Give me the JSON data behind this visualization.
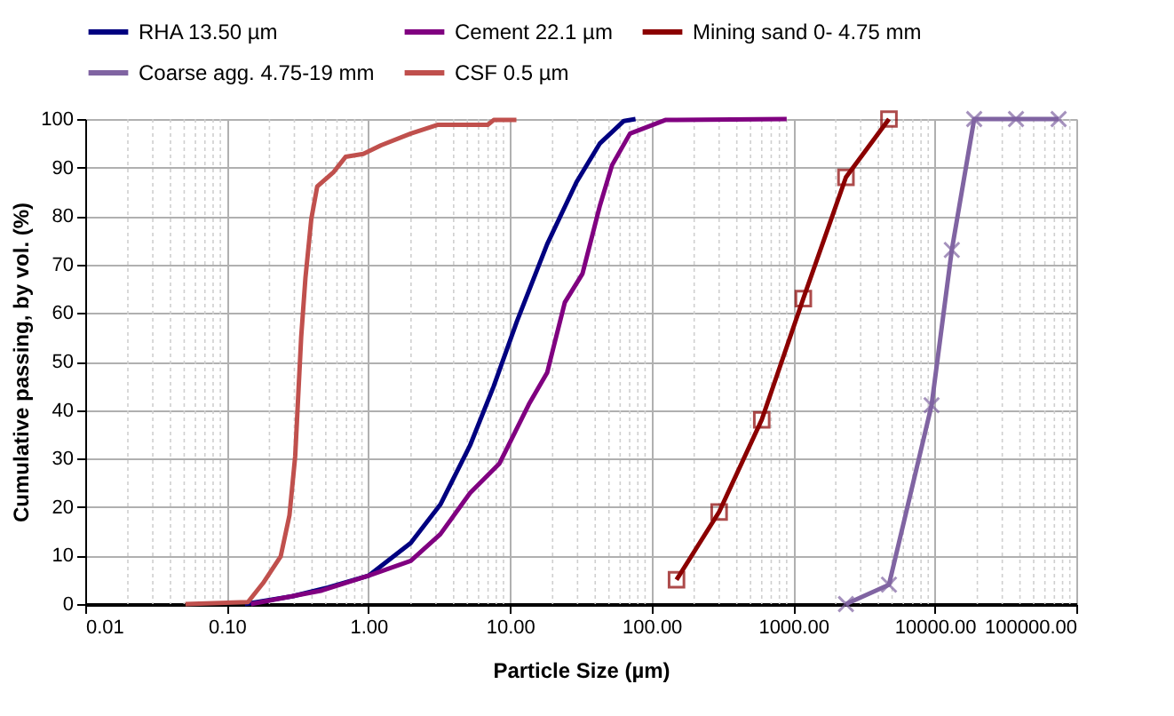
{
  "chart_data": {
    "type": "line",
    "xlabel": "Particle Size (µm)",
    "ylabel": "Cumulative passing, by vol. (%)",
    "log": "x",
    "grid": true,
    "legend": "top",
    "xlim": [
      0.01,
      100000
    ],
    "ylim": [
      0,
      100
    ],
    "xticks": [
      {
        "value": 0.01,
        "label": "0.01"
      },
      {
        "value": 0.1,
        "label": "0.10"
      },
      {
        "value": 1,
        "label": "1.00"
      },
      {
        "value": 10,
        "label": "10.00"
      },
      {
        "value": 100,
        "label": "100.00"
      },
      {
        "value": 1000,
        "label": "1000.00"
      },
      {
        "value": 10000,
        "label": "10000.00"
      },
      {
        "value": 100000,
        "label": "100000.00"
      }
    ],
    "yticks": [
      0,
      10,
      20,
      30,
      40,
      50,
      60,
      70,
      80,
      90,
      100
    ],
    "series": [
      {
        "name": "RHA 13.50 µm",
        "color": "#000080",
        "marker": "none",
        "x": [
          0.134,
          0.29,
          0.517,
          1.01,
          1.99,
          3.22,
          5.22,
          7.67,
          11.2,
          18.3,
          29.5,
          43.2,
          63.7,
          77
        ],
        "values": [
          0,
          1.6,
          3.4,
          5.9,
          12.6,
          20.5,
          32.7,
          44.9,
          58.3,
          74.2,
          87,
          95,
          99.6,
          100
        ]
      },
      {
        "name": "Cement 22.1 µm",
        "color": "#800080",
        "marker": "none",
        "x": [
          0.148,
          0.47,
          1.01,
          1.99,
          3.22,
          5.22,
          8.43,
          13.6,
          18.3,
          20,
          24.4,
          32.5,
          43.2,
          52.6,
          70.4,
          125,
          900
        ],
        "values": [
          0,
          2.8,
          5.9,
          8.9,
          14.4,
          22.9,
          29,
          41.2,
          47.7,
          52.2,
          62.2,
          68.1,
          82.2,
          90.5,
          97,
          99.8,
          100
        ]
      },
      {
        "name": "Mining sand 0- 4.75 mm",
        "color": "#8b0000",
        "marker": "square",
        "x": [
          150,
          300,
          600,
          1180,
          2360,
          4750
        ],
        "values": [
          5,
          19,
          38,
          63,
          88,
          100
        ]
      },
      {
        "name": "Coarse agg. 4.75-19 mm",
        "color": "#8064a2",
        "marker": "cross",
        "x": [
          2360,
          4750,
          9500,
          13200,
          19000,
          37500,
          75000
        ],
        "values": [
          0,
          4,
          41,
          73,
          100,
          100,
          100
        ]
      },
      {
        "name": "CSF  0.5 µm",
        "color": "#c0504d",
        "marker": "none",
        "x": [
          0.051,
          0.141,
          0.18,
          0.24,
          0.277,
          0.304,
          0.335,
          0.359,
          0.395,
          0.435,
          0.569,
          0.69,
          0.92,
          1.23,
          1.99,
          3.07,
          6.96,
          7.67,
          11.1
        ],
        "values": [
          0,
          0.4,
          4.3,
          9.8,
          18.3,
          30.5,
          55,
          67.2,
          79.4,
          86.1,
          89.1,
          92.2,
          92.8,
          94.6,
          97,
          98.8,
          98.8,
          99.8,
          99.8
        ]
      }
    ]
  }
}
